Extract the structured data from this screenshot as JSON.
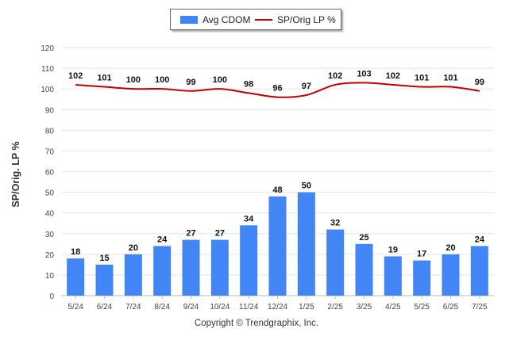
{
  "chart_data": {
    "type": "bar+line",
    "categories": [
      "5/24",
      "6/24",
      "7/24",
      "8/24",
      "9/24",
      "10/24",
      "11/24",
      "12/24",
      "1/25",
      "2/25",
      "3/25",
      "4/25",
      "5/25",
      "6/25",
      "7/25"
    ],
    "series": [
      {
        "name": "Avg CDOM",
        "type": "bar",
        "color": "#4285f4",
        "values": [
          18,
          15,
          20,
          24,
          27,
          27,
          34,
          48,
          50,
          32,
          25,
          19,
          17,
          20,
          24
        ]
      },
      {
        "name": "SP/Orig LP %",
        "type": "line",
        "color": "#c00000",
        "values": [
          102,
          101,
          100,
          100,
          99,
          100,
          98,
          96,
          97,
          102,
          103,
          102,
          101,
          101,
          99
        ]
      }
    ],
    "ylabel": "SP/Orig. LP %",
    "ylim": [
      0,
      120
    ],
    "yticks": [
      0,
      10,
      20,
      30,
      40,
      50,
      60,
      70,
      80,
      90,
      100,
      110,
      120
    ],
    "grid": true,
    "legend_position": "top-center"
  },
  "footer": {
    "copyright": "Copyright © Trendgraphix, Inc."
  }
}
